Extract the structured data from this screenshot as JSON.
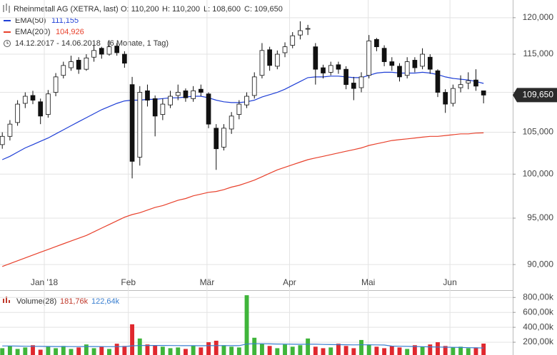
{
  "chart_data": {
    "type": "candlestick",
    "title": "Rheinmetall AG (XETRA, last)",
    "quote": [
      "O: 110,200",
      "H: 110,200",
      "L: 108,600",
      "C: 109,650"
    ],
    "period": "14.12.2017 - 14.06.2018",
    "period_note": "(6 Monate, 1 Tag)",
    "log_scale": true,
    "grid": true,
    "xlim": [
      -0.3,
      64.2
    ],
    "xticks": [
      {
        "value": 5.5,
        "label": "Jan '18"
      },
      {
        "value": 16.5,
        "label": "Feb"
      },
      {
        "value": 26.8,
        "label": "Mär"
      },
      {
        "value": 37.6,
        "label": "Apr"
      },
      {
        "value": 47.9,
        "label": "Mai"
      },
      {
        "value": 58.6,
        "label": "Jun"
      }
    ],
    "ylim": [
      87500,
      122500
    ],
    "yticks": [
      {
        "value": 90000,
        "label": "90,000"
      },
      {
        "value": 95000,
        "label": "95,000"
      },
      {
        "value": 100000,
        "label": "100,000"
      },
      {
        "value": 105000,
        "label": "105,000"
      },
      {
        "value": 110000,
        "label": "110,000"
      },
      {
        "value": 115000,
        "label": "115,000"
      },
      {
        "value": 120000,
        "label": "120,000"
      }
    ],
    "last_price": {
      "value": 109650,
      "label": "109,650"
    },
    "ohlc": [
      [
        103500,
        105000,
        103000,
        104500
      ],
      [
        104500,
        106500,
        104000,
        106000
      ],
      [
        106200,
        109000,
        105800,
        108500
      ],
      [
        108600,
        110000,
        108000,
        109500
      ],
      [
        109600,
        110200,
        108500,
        109000
      ],
      [
        108800,
        109200,
        106000,
        107000
      ],
      [
        107200,
        110300,
        106800,
        109800
      ],
      [
        110000,
        112500,
        109500,
        112000
      ],
      [
        112200,
        114000,
        111800,
        113500
      ],
      [
        113200,
        114800,
        112800,
        114000
      ],
      [
        114200,
        114600,
        112400,
        113000
      ],
      [
        113000,
        115000,
        112800,
        114500
      ],
      [
        114600,
        116200,
        114000,
        115500
      ],
      [
        115800,
        116000,
        114400,
        115000
      ],
      [
        115000,
        116800,
        114800,
        116000
      ],
      [
        116100,
        116500,
        114800,
        115200
      ],
      [
        115000,
        115400,
        113200,
        113800
      ],
      [
        111000,
        112000,
        99500,
        101500
      ],
      [
        102000,
        110800,
        101000,
        110000
      ],
      [
        110200,
        111000,
        108200,
        109000
      ],
      [
        109200,
        109600,
        104500,
        107000
      ],
      [
        107200,
        109200,
        106500,
        108500
      ],
      [
        108400,
        110200,
        108000,
        109500
      ],
      [
        109600,
        111000,
        109000,
        110000
      ],
      [
        110200,
        110500,
        108800,
        109300
      ],
      [
        109200,
        110800,
        108800,
        110200
      ],
      [
        110400,
        111000,
        109500,
        110000
      ],
      [
        109800,
        110000,
        105500,
        106000
      ],
      [
        105500,
        106000,
        100500,
        103000
      ],
      [
        103200,
        106000,
        102800,
        105500
      ],
      [
        105400,
        107500,
        104800,
        107000
      ],
      [
        107200,
        109000,
        106600,
        108500
      ],
      [
        108400,
        110000,
        108000,
        109500
      ],
      [
        109600,
        112600,
        109200,
        112000
      ],
      [
        112200,
        116500,
        111800,
        115500
      ],
      [
        115600,
        116000,
        112800,
        113500
      ],
      [
        113400,
        115500,
        113000,
        115000
      ],
      [
        115200,
        116600,
        114600,
        116000
      ],
      [
        116200,
        118000,
        115800,
        117500
      ],
      [
        117600,
        119500,
        117000,
        118200
      ],
      [
        118400,
        119000,
        117600,
        118500
      ],
      [
        116000,
        116500,
        111000,
        113000
      ],
      [
        113200,
        113600,
        111800,
        112500
      ],
      [
        112600,
        114000,
        112200,
        113500
      ],
      [
        113600,
        114000,
        112400,
        113000
      ],
      [
        113000,
        113400,
        110400,
        111000
      ],
      [
        111200,
        112000,
        109000,
        110500
      ],
      [
        110600,
        112600,
        110000,
        112000
      ],
      [
        112200,
        117600,
        111800,
        116800
      ],
      [
        117000,
        117200,
        115400,
        116000
      ],
      [
        115800,
        116200,
        113400,
        114000
      ],
      [
        114000,
        114600,
        112800,
        113500
      ],
      [
        113400,
        113800,
        111400,
        112000
      ],
      [
        112200,
        114600,
        111800,
        114000
      ],
      [
        114200,
        114600,
        112600,
        113200
      ],
      [
        113400,
        115800,
        113000,
        115000
      ],
      [
        114600,
        115000,
        112400,
        113000
      ],
      [
        112800,
        113000,
        109400,
        110000
      ],
      [
        110000,
        110400,
        107400,
        108500
      ],
      [
        108600,
        111000,
        108200,
        110500
      ],
      [
        110600,
        112200,
        110000,
        111000
      ],
      [
        111200,
        112600,
        110400,
        111500
      ],
      [
        111600,
        113000,
        110200,
        110800
      ],
      [
        110200,
        110200,
        108600,
        109650
      ]
    ],
    "series": [
      {
        "name": "EMA(50)",
        "color": "#1f3fd6",
        "value_label": "111,155",
        "values": [
          101700,
          102100,
          102600,
          103100,
          103500,
          103900,
          104300,
          104800,
          105300,
          105800,
          106300,
          106800,
          107300,
          107800,
          108200,
          108600,
          108900,
          109000,
          109000,
          109100,
          109100,
          109200,
          109300,
          109300,
          109400,
          109500,
          109500,
          109300,
          109000,
          108800,
          108700,
          108700,
          108800,
          109000,
          109400,
          109700,
          110000,
          110400,
          110900,
          111400,
          111900,
          112000,
          112000,
          112100,
          112100,
          112000,
          111900,
          111900,
          112200,
          112500,
          112600,
          112600,
          112500,
          112500,
          112500,
          112600,
          112500,
          112300,
          112000,
          111800,
          111700,
          111600,
          111400,
          111155
        ]
      },
      {
        "name": "EMA(200)",
        "color": "#e8412c",
        "value_label": "104,926",
        "values": [
          89800,
          90100,
          90400,
          90700,
          91000,
          91300,
          91600,
          91900,
          92200,
          92500,
          92800,
          93100,
          93500,
          93900,
          94300,
          94700,
          95100,
          95400,
          95600,
          95900,
          96200,
          96400,
          96700,
          97000,
          97200,
          97500,
          97700,
          97900,
          98000,
          98200,
          98500,
          98700,
          99000,
          99300,
          99700,
          100100,
          100500,
          100800,
          101100,
          101400,
          101700,
          101900,
          102100,
          102300,
          102500,
          102700,
          102900,
          103100,
          103400,
          103600,
          103800,
          104000,
          104100,
          104200,
          104300,
          104400,
          104500,
          104500,
          104600,
          104700,
          104800,
          104800,
          104900,
          104926
        ]
      }
    ],
    "volume": {
      "name": "Volume(28)",
      "value_label": "181,76k",
      "up_color": "#3fb53a",
      "down_color": "#e0282e",
      "ylim": [
        0,
        860000
      ],
      "yticks": [
        {
          "value": 200000,
          "label": "200,00k"
        },
        {
          "value": 400000,
          "label": "400,00k"
        },
        {
          "value": 600000,
          "label": "600,00k"
        },
        {
          "value": 800000,
          "label": "800,00k"
        }
      ],
      "values": [
        120000,
        150000,
        110000,
        130000,
        160000,
        100000,
        140000,
        120000,
        150000,
        110000,
        130000,
        170000,
        120000,
        140000,
        110000,
        180000,
        150000,
        440000,
        250000,
        170000,
        160000,
        140000,
        120000,
        130000,
        110000,
        150000,
        130000,
        200000,
        220000,
        160000,
        140000,
        130000,
        830000,
        260000,
        180000,
        150000,
        120000,
        170000,
        140000,
        160000,
        250000,
        140000,
        120000,
        130000,
        180000,
        150000,
        120000,
        230000,
        170000,
        140000,
        120000,
        150000,
        130000,
        110000,
        160000,
        140000,
        170000,
        200000,
        150000,
        130000,
        140000,
        120000,
        130000,
        181760
      ],
      "average": {
        "name": "122,64k",
        "color": "#3a7fd0",
        "values": [
          150000,
          150000,
          148000,
          146000,
          145000,
          144000,
          143000,
          142000,
          142000,
          141000,
          141000,
          142000,
          142000,
          141000,
          140000,
          141000,
          141000,
          152000,
          156000,
          157000,
          157000,
          157000,
          156000,
          155000,
          154000,
          154000,
          153000,
          154000,
          155000,
          155000,
          154000,
          154000,
          176000,
          180000,
          180000,
          178000,
          176000,
          175000,
          173000,
          172000,
          174000,
          173000,
          170000,
          168000,
          167000,
          166000,
          164000,
          165000,
          165000,
          164000,
          162000,
          148000,
          146000,
          144000,
          142000,
          140000,
          138000,
          136000,
          134000,
          132000,
          130000,
          127000,
          125000,
          122640
        ]
      }
    }
  }
}
